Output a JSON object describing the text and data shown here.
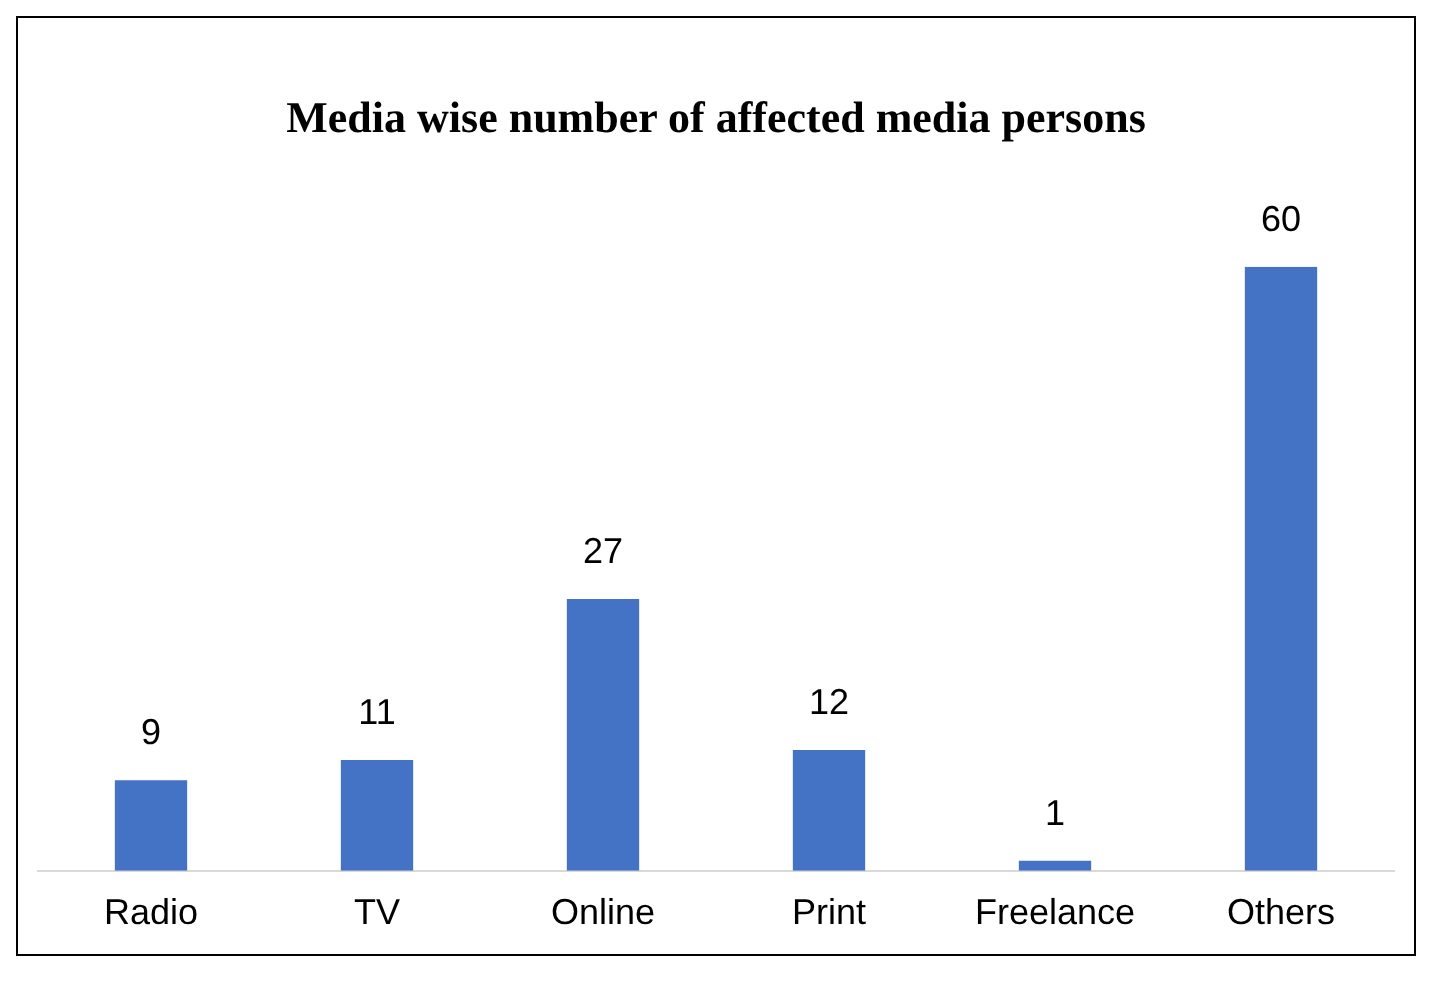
{
  "chart_data": {
    "type": "bar",
    "title": "Media wise number of affected media persons",
    "categories": [
      "Radio",
      "TV",
      "Online",
      "Print",
      "Freelance",
      "Others"
    ],
    "values": [
      9,
      11,
      27,
      12,
      1,
      60
    ],
    "color": "#4472c4",
    "data_labels": true,
    "tick_labels": "x",
    "grid": false,
    "legend": false
  }
}
